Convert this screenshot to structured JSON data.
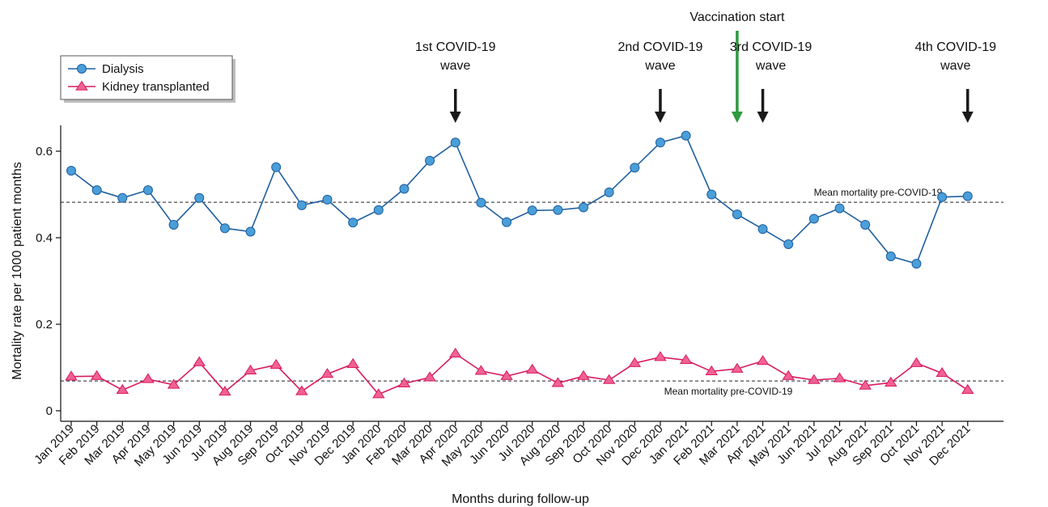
{
  "chart_data": {
    "type": "line",
    "xlabel": "Months during follow-up",
    "ylabel": "Mortality rate per 1000 patient months",
    "ylim": [
      -0.01,
      0.66
    ],
    "yticks": [
      0,
      0.2,
      0.4,
      0.6
    ],
    "yticklabels": [
      "0",
      "0.2",
      "0.4",
      "0.6"
    ],
    "grid": false,
    "legend_position": "top-left",
    "categories": [
      "Jan 2019",
      "Feb 2019",
      "Mar 2019",
      "Apr 2019",
      "May 2019",
      "Jun 2019",
      "Jul 2019",
      "Aug 2019",
      "Sep 2019",
      "Oct 2019",
      "Nov 2019",
      "Dec 2019",
      "Jan 2020",
      "Feb 2020",
      "Mar 2020",
      "Apr 2020",
      "May 2020",
      "Jun 2020",
      "Jul 2020",
      "Aug 2020",
      "Sep 2020",
      "Oct 2020",
      "Nov 2020",
      "Dec 2020",
      "Jan 2021",
      "Feb 2021",
      "Mar 2021",
      "Apr 2021",
      "May 2021",
      "Jun 2021",
      "Jul 2021",
      "Aug 2021",
      "Sep 2021",
      "Oct 2021",
      "Nov 2021",
      "Dec 2021"
    ],
    "series": [
      {
        "name": "Dialysis",
        "marker": "circle",
        "color": "#1f5fa0",
        "fill": "#4a9fd8",
        "values": [
          0.555,
          0.51,
          0.492,
          0.51,
          0.43,
          0.492,
          0.422,
          0.414,
          0.563,
          0.475,
          0.488,
          0.435,
          0.464,
          0.513,
          0.578,
          0.62,
          0.481,
          0.436,
          0.463,
          0.464,
          0.47,
          0.505,
          0.562,
          0.62,
          0.636,
          0.5,
          0.454,
          0.42,
          0.385,
          0.444,
          0.468,
          0.43,
          0.357,
          0.34,
          0.494,
          0.496
        ]
      },
      {
        "name": "Kidney transplanted",
        "marker": "triangle",
        "color": "#d81b60",
        "fill": "#f06292",
        "values": [
          0.079,
          0.08,
          0.048,
          0.073,
          0.06,
          0.112,
          0.044,
          0.093,
          0.106,
          0.045,
          0.085,
          0.108,
          0.038,
          0.063,
          0.077,
          0.132,
          0.092,
          0.08,
          0.095,
          0.064,
          0.08,
          0.071,
          0.11,
          0.124,
          0.117,
          0.091,
          0.097,
          0.115,
          0.08,
          0.071,
          0.075,
          0.058,
          0.065,
          0.11,
          0.087,
          0.048
        ]
      }
    ],
    "reference_lines": [
      {
        "label": "Mean mortality pre-COVID-19",
        "y": 0.482
      },
      {
        "label": "Mean mortality pre-COVID-19",
        "y": 0.069
      }
    ],
    "annotations": [
      {
        "lines": [
          "1st COVID-19",
          "wave"
        ],
        "x": "Apr 2020",
        "color": "#1a1a1a"
      },
      {
        "lines": [
          "2nd COVID-19",
          "wave"
        ],
        "x": "Dec 2020",
        "color": "#1a1a1a"
      },
      {
        "lines": [
          "Vaccination start"
        ],
        "x": "Mar 2021",
        "color": "#2e9a3e"
      },
      {
        "lines": [
          "3rd COVID-19",
          "wave"
        ],
        "x": "Apr 2021",
        "color": "#1a1a1a"
      },
      {
        "lines": [
          "4th COVID-19",
          "wave"
        ],
        "x": "Dec 2021",
        "color": "#1a1a1a"
      }
    ]
  }
}
